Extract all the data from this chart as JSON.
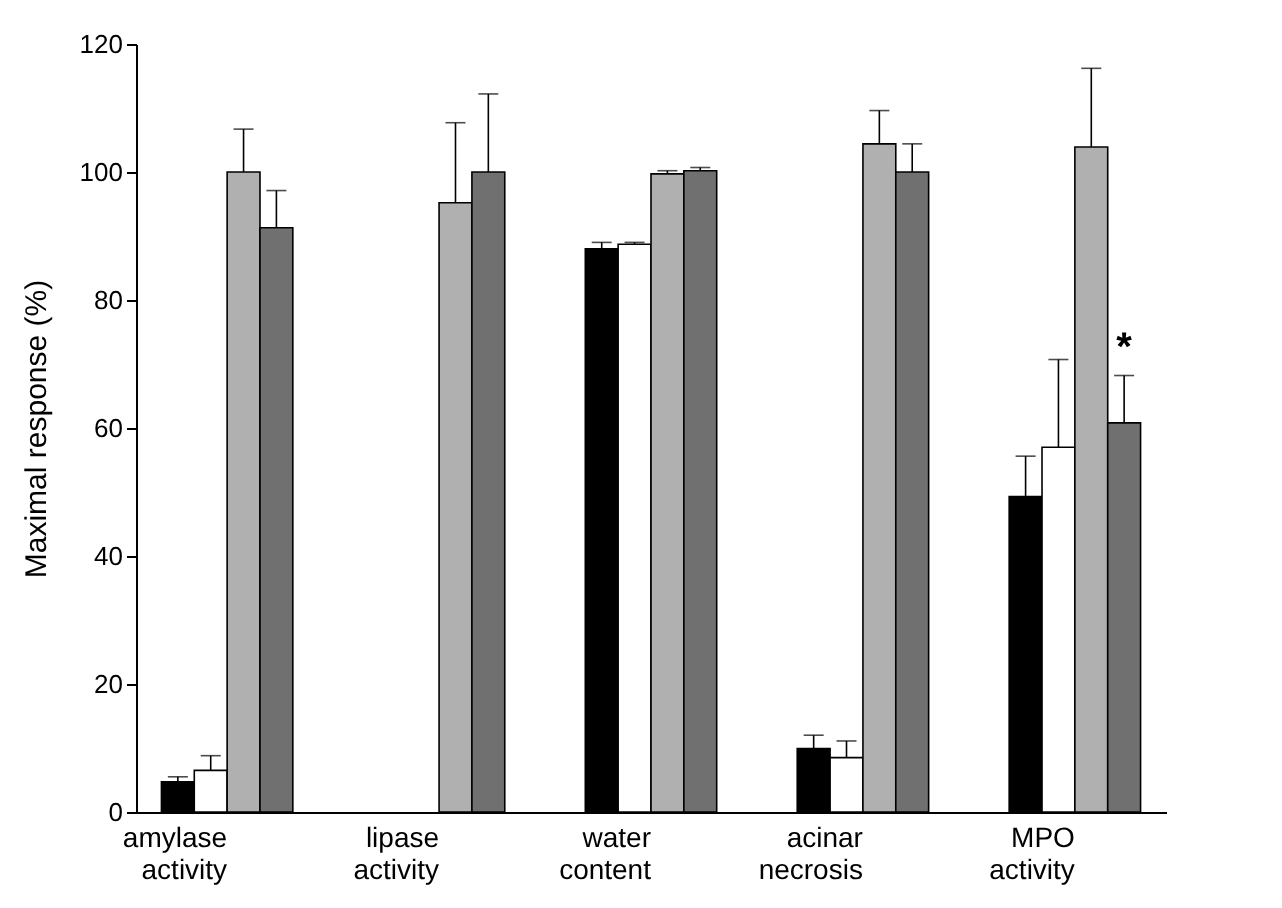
{
  "chart_data": {
    "type": "bar",
    "ylabel": "Maximal response (%)",
    "categories": [
      "amylase activity",
      "lipase activity",
      "water content",
      "acinar necrosis",
      "MPO activity"
    ],
    "series": [
      {
        "color": "#000000",
        "values": [
          4.7,
          null,
          88.0,
          9.9,
          49.3
        ],
        "errors": [
          0.8,
          null,
          1.0,
          2.1,
          6.3
        ]
      },
      {
        "color": "#ffffff",
        "values": [
          6.5,
          null,
          88.7,
          8.5,
          57.0
        ],
        "errors": [
          2.3,
          null,
          0.3,
          2.6,
          13.7
        ]
      },
      {
        "color": "#b0b0b0",
        "values": [
          100.0,
          95.2,
          99.7,
          104.4,
          103.9
        ],
        "errors": [
          6.7,
          12.5,
          0.5,
          5.2,
          12.3
        ]
      },
      {
        "color": "#707070",
        "values": [
          91.3,
          100.0,
          100.2,
          100.0,
          60.8
        ],
        "errors": [
          5.8,
          12.2,
          0.5,
          4.4,
          7.4
        ]
      }
    ],
    "annotations": [
      "*"
    ],
    "ylim": [
      0,
      120
    ],
    "yticks": [
      0,
      20,
      40,
      60,
      80,
      100,
      120
    ],
    "grid": false,
    "legend": false
  }
}
